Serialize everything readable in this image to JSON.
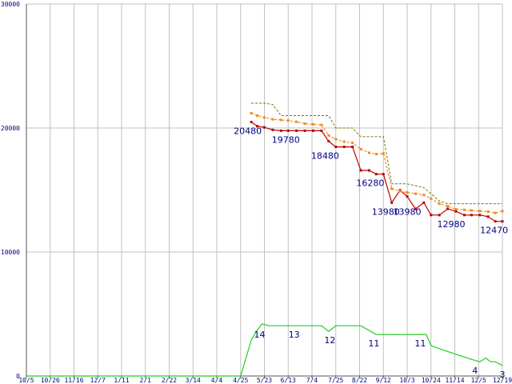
{
  "chart_data": {
    "type": "line",
    "x_labels": [
      "10/5",
      "10/26",
      "11/16",
      "12/7",
      "1/11",
      "2/1",
      "2/22",
      "3/14",
      "4/4",
      "4/25",
      "5/23",
      "6/13",
      "7/4",
      "7/25",
      "8/22",
      "9/12",
      "10/3",
      "10/24",
      "11/14",
      "12/5",
      "12/19"
    ],
    "y_ticks": [
      0,
      10000,
      20000,
      30000
    ],
    "ylim": [
      0,
      30000
    ],
    "grid": true,
    "colors": {
      "price": "#bb0000",
      "avg": "#f08c1e",
      "upper": "#6b7d00",
      "count": "#22cc22",
      "grid": "#c0c0c0",
      "axis": "#555555",
      "label": "#000080"
    },
    "series": [
      {
        "key": "price",
        "x": [
          9.45,
          9.7,
          10.0,
          10.35,
          10.7,
          11.0,
          11.35,
          11.7,
          12.05,
          12.4,
          12.7,
          13.0,
          13.35,
          13.7,
          14.05,
          14.4,
          14.7,
          15.0,
          15.35,
          15.7,
          16.0,
          16.35,
          16.7,
          17.0,
          17.35,
          17.7,
          18.05,
          18.4,
          18.7,
          19.05,
          19.4,
          19.7,
          20.0
        ],
        "values": [
          20480,
          20150,
          20050,
          19850,
          19780,
          19780,
          19780,
          19780,
          19780,
          19780,
          18930,
          18480,
          18480,
          18480,
          16580,
          16580,
          16280,
          16280,
          13980,
          14980,
          14480,
          13480,
          13980,
          12980,
          12980,
          13480,
          13280,
          12980,
          12980,
          12980,
          12850,
          12470,
          12470
        ]
      },
      {
        "key": "avg",
        "x": [
          9.45,
          9.7,
          10.0,
          10.35,
          10.7,
          11.0,
          11.35,
          11.7,
          12.05,
          12.4,
          12.7,
          13.0,
          13.35,
          13.7,
          14.05,
          14.4,
          14.7,
          15.0,
          15.35,
          15.7,
          16.0,
          16.35,
          16.7,
          17.0,
          17.35,
          17.7,
          18.05,
          18.4,
          18.7,
          19.05,
          19.4,
          19.7,
          20.0
        ],
        "values": [
          21200,
          21000,
          20850,
          20700,
          20650,
          20600,
          20500,
          20350,
          20300,
          20250,
          19400,
          19100,
          18900,
          18800,
          18300,
          18000,
          17900,
          17950,
          15100,
          14900,
          14800,
          14700,
          14600,
          14300,
          13900,
          13700,
          13450,
          13400,
          13350,
          13300,
          13250,
          13150,
          13300
        ]
      },
      {
        "key": "upper",
        "x": [
          9.45,
          9.7,
          10.0,
          10.35,
          10.7,
          11.0,
          11.35,
          11.7,
          12.05,
          12.4,
          12.7,
          13.0,
          13.35,
          13.7,
          14.05,
          14.4,
          14.7,
          15.0,
          15.35,
          15.7,
          16.0,
          16.35,
          16.7,
          17.0,
          17.35,
          17.7,
          18.05,
          18.4,
          18.7,
          19.05,
          19.4,
          19.7,
          20.0
        ],
        "values": [
          22000,
          22000,
          22000,
          21900,
          21000,
          21000,
          21000,
          21000,
          21000,
          21000,
          21000,
          20000,
          20000,
          20000,
          19300,
          19300,
          19300,
          19300,
          15500,
          15500,
          15500,
          15350,
          15200,
          14700,
          14100,
          13900,
          13900,
          13900,
          13900,
          13900,
          13900,
          13900,
          13900
        ]
      },
      {
        "key": "count",
        "x": [
          0,
          9.0,
          9.45,
          9.7,
          9.9,
          10.2,
          12.4,
          12.7,
          13.0,
          14.05,
          14.7,
          16.8,
          17.0,
          17.35,
          18.6,
          19.05,
          19.3,
          19.5,
          19.7,
          20.0,
          20.0
        ],
        "values": [
          0,
          0,
          2900,
          3700,
          4200,
          4050,
          4050,
          3600,
          4050,
          4050,
          3350,
          3350,
          2450,
          2200,
          1400,
          1150,
          1450,
          1150,
          1150,
          850,
          850
        ]
      }
    ],
    "price_labels": [
      {
        "x": 9.3,
        "y": 20480,
        "text": "20480"
      },
      {
        "x": 10.9,
        "y": 19780,
        "text": "19780"
      },
      {
        "x": 12.55,
        "y": 18480,
        "text": "18480"
      },
      {
        "x": 14.45,
        "y": 16280,
        "text": "16280"
      },
      {
        "x": 15.1,
        "y": 13980,
        "text": "13980"
      },
      {
        "x": 16.0,
        "y": 13980,
        "text": "13980"
      },
      {
        "x": 17.85,
        "y": 12980,
        "text": "12980"
      },
      {
        "x": 19.65,
        "y": 12470,
        "text": "12470"
      }
    ],
    "count_labels": [
      {
        "x": 9.8,
        "y": 4050,
        "text": "14"
      },
      {
        "x": 11.25,
        "y": 4050,
        "text": "13"
      },
      {
        "x": 12.75,
        "y": 3600,
        "text": "12"
      },
      {
        "x": 14.6,
        "y": 3350,
        "text": "11"
      },
      {
        "x": 16.55,
        "y": 3350,
        "text": "11"
      },
      {
        "x": 18.85,
        "y": 1150,
        "text": "4"
      },
      {
        "x": 20.0,
        "y": 850,
        "text": "3"
      }
    ]
  }
}
